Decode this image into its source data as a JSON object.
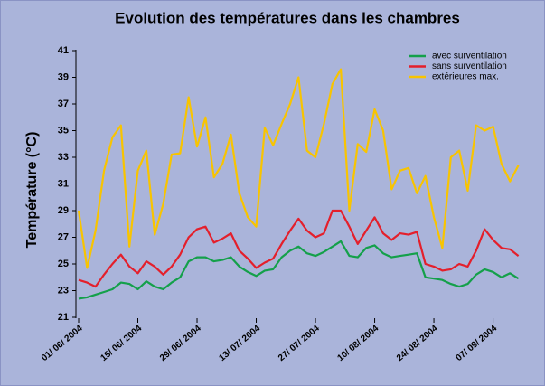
{
  "chart_data": {
    "type": "line",
    "title": "Evolution des températures dans les chambres",
    "y_label": "Température (°C)",
    "x": [
      "2004-06-01",
      "2004-06-03",
      "2004-06-05",
      "2004-06-07",
      "2004-06-09",
      "2004-06-11",
      "2004-06-13",
      "2004-06-15",
      "2004-06-17",
      "2004-06-19",
      "2004-06-21",
      "2004-06-23",
      "2004-06-25",
      "2004-06-27",
      "2004-06-29",
      "2004-07-01",
      "2004-07-03",
      "2004-07-05",
      "2004-07-07",
      "2004-07-09",
      "2004-07-11",
      "2004-07-13",
      "2004-07-15",
      "2004-07-17",
      "2004-07-19",
      "2004-07-21",
      "2004-07-23",
      "2004-07-25",
      "2004-07-27",
      "2004-07-29",
      "2004-07-31",
      "2004-08-02",
      "2004-08-04",
      "2004-08-06",
      "2004-08-08",
      "2004-08-10",
      "2004-08-12",
      "2004-08-14",
      "2004-08-16",
      "2004-08-18",
      "2004-08-20",
      "2004-08-22",
      "2004-08-24",
      "2004-08-26",
      "2004-08-28",
      "2004-08-30",
      "2004-09-01",
      "2004-09-03",
      "2004-09-05",
      "2004-09-07",
      "2004-09-09",
      "2004-09-11",
      "2004-09-13"
    ],
    "series": [
      {
        "name": "avec surventilation",
        "color": "#14a04a",
        "values": [
          22.4,
          22.5,
          22.7,
          22.9,
          23.1,
          23.6,
          23.5,
          23.1,
          23.7,
          23.3,
          23.1,
          23.6,
          24,
          25.2,
          25.5,
          25.5,
          25.2,
          25.3,
          25.5,
          24.8,
          24.4,
          24.1,
          24.5,
          24.6,
          25.5,
          26,
          26.3,
          25.8,
          25.6,
          25.9,
          26.3,
          26.7,
          25.6,
          25.5,
          26.2,
          26.4,
          25.8,
          25.5,
          25.6,
          25.7,
          25.8,
          24,
          23.9,
          23.8,
          23.5,
          23.3,
          23.5,
          24.2,
          24.6,
          24.4,
          24,
          24.3,
          23.9
        ]
      },
      {
        "name": "sans surventilation",
        "color": "#e41f2b",
        "values": [
          23.8,
          23.6,
          23.3,
          24.2,
          25,
          25.7,
          24.8,
          24.3,
          25.2,
          24.8,
          24.2,
          24.8,
          25.7,
          27,
          27.6,
          27.8,
          26.6,
          26.9,
          27.3,
          26,
          25.4,
          24.7,
          25.1,
          25.4,
          26.5,
          27.5,
          28.4,
          27.5,
          27,
          27.3,
          29,
          29,
          27.8,
          26.5,
          27.5,
          28.5,
          27.3,
          26.8,
          27.3,
          27.2,
          27.4,
          25,
          24.8,
          24.5,
          24.6,
          25,
          24.8,
          26,
          27.6,
          26.8,
          26.2,
          26.1,
          25.6
        ]
      },
      {
        "name": "extérieures max.",
        "color": "#f8c400",
        "values": [
          29,
          24.7,
          27.5,
          32,
          34.5,
          35.4,
          26.3,
          32,
          33.5,
          27.2,
          29.5,
          33.2,
          33.3,
          37.5,
          33.8,
          36,
          31.5,
          32.5,
          34.7,
          30.3,
          28.5,
          27.8,
          35.2,
          33.9,
          35.5,
          37,
          39,
          33.5,
          33,
          35.5,
          38.5,
          39.6,
          29,
          34,
          33.4,
          36.6,
          35,
          30.6,
          32,
          32.2,
          30.3,
          31.6,
          28.5,
          26.2,
          33,
          33.5,
          30.5,
          35.4,
          35,
          35.3,
          32.5,
          31.2,
          32.4
        ]
      }
    ],
    "xlim": [
      "2004-06-01",
      "2004-09-15"
    ],
    "xticks": [
      {
        "value": "2004-06-01",
        "label": "01/ 06/ 2004"
      },
      {
        "value": "2004-06-15",
        "label": "15/ 06/ 2004"
      },
      {
        "value": "2004-06-29",
        "label": "29/ 06/ 2004"
      },
      {
        "value": "2004-07-13",
        "label": "13/ 07/ 2004"
      },
      {
        "value": "2004-07-27",
        "label": "27/ 07/ 2004"
      },
      {
        "value": "2004-08-10",
        "label": "10/ 08/ 2004"
      },
      {
        "value": "2004-08-24",
        "label": "24/ 08/ 2004"
      },
      {
        "value": "2004-09-07",
        "label": "07/ 09/ 2004"
      }
    ],
    "ylim": [
      21,
      41
    ],
    "yticks": [
      21,
      23,
      25,
      27,
      29,
      31,
      33,
      35,
      37,
      39,
      41
    ],
    "legend": "top-right"
  }
}
